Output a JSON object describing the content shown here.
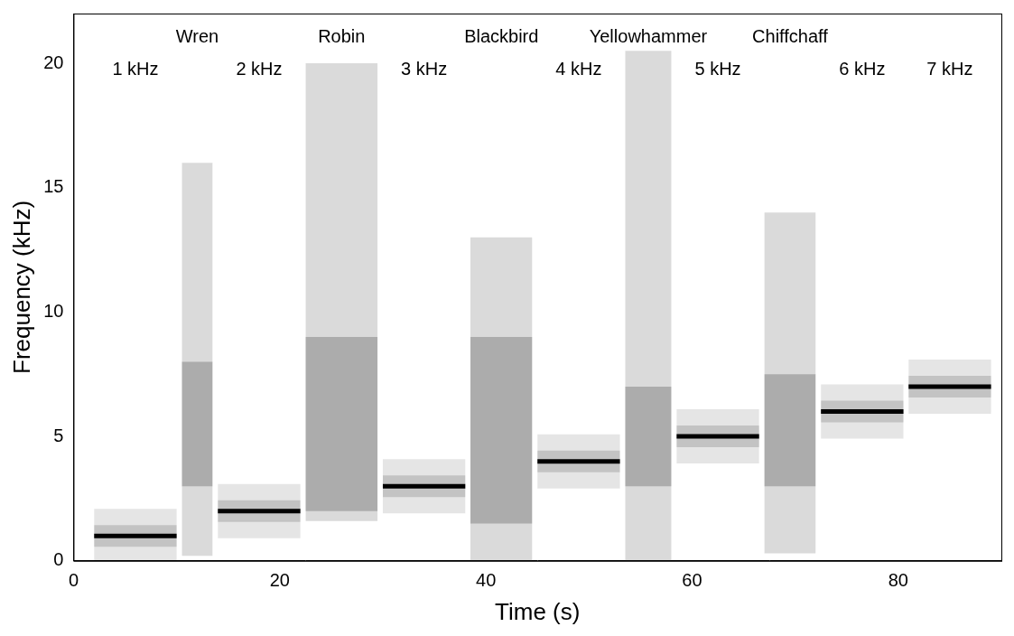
{
  "chart_data": {
    "type": "line",
    "x_label": "Time (s)",
    "y_label": "Frequency (kHz)",
    "xlim": [
      0,
      90
    ],
    "xticks": [
      0,
      20,
      40,
      60,
      80
    ],
    "ylim": [
      0,
      22
    ],
    "yticks": [
      0,
      5,
      10,
      15,
      20
    ],
    "grid": false,
    "series": [
      {
        "name": "1 kHz",
        "type": "line",
        "color": "#000000",
        "x": [
          2,
          10
        ],
        "values": [
          1,
          1
        ]
      },
      {
        "name": "Wren",
        "type": "band",
        "color": "#555555",
        "x": [
          10.5,
          13.5
        ],
        "frequency_range": [
          0.2,
          16
        ],
        "peak_range": [
          3,
          8
        ]
      },
      {
        "name": "2 kHz",
        "type": "line",
        "color": "#000000",
        "x": [
          14,
          22
        ],
        "values": [
          2,
          2
        ]
      },
      {
        "name": "Robin",
        "type": "band",
        "color": "#555555",
        "x": [
          22.5,
          29.5
        ],
        "frequency_range": [
          1.6,
          20
        ],
        "peak_range": [
          2,
          9
        ]
      },
      {
        "name": "3 kHz",
        "type": "line",
        "color": "#000000",
        "x": [
          30,
          38
        ],
        "values": [
          3,
          3
        ]
      },
      {
        "name": "Blackbird",
        "type": "band",
        "color": "#555555",
        "x": [
          38.5,
          44.5
        ],
        "frequency_range": [
          0,
          13
        ],
        "peak_range": [
          1.5,
          9
        ]
      },
      {
        "name": "4 kHz",
        "type": "line",
        "color": "#000000",
        "x": [
          45,
          53
        ],
        "values": [
          4,
          4
        ]
      },
      {
        "name": "Yellowhammer",
        "type": "band",
        "color": "#555555",
        "x": [
          53.5,
          58
        ],
        "frequency_range": [
          0,
          20.5
        ],
        "peak_range": [
          3,
          7
        ]
      },
      {
        "name": "5 kHz",
        "type": "line",
        "color": "#000000",
        "x": [
          58.5,
          66.5
        ],
        "values": [
          5,
          5
        ]
      },
      {
        "name": "Chiffchaff",
        "type": "band",
        "color": "#555555",
        "x": [
          67,
          72
        ],
        "frequency_range": [
          0.3,
          14
        ],
        "peak_range": [
          3,
          7.5
        ]
      },
      {
        "name": "6 kHz",
        "type": "line",
        "color": "#000000",
        "x": [
          72.5,
          80.5
        ],
        "values": [
          6,
          6
        ]
      },
      {
        "name": "7 kHz",
        "type": "line",
        "color": "#000000",
        "x": [
          81,
          89
        ],
        "values": [
          7,
          7
        ]
      }
    ]
  }
}
